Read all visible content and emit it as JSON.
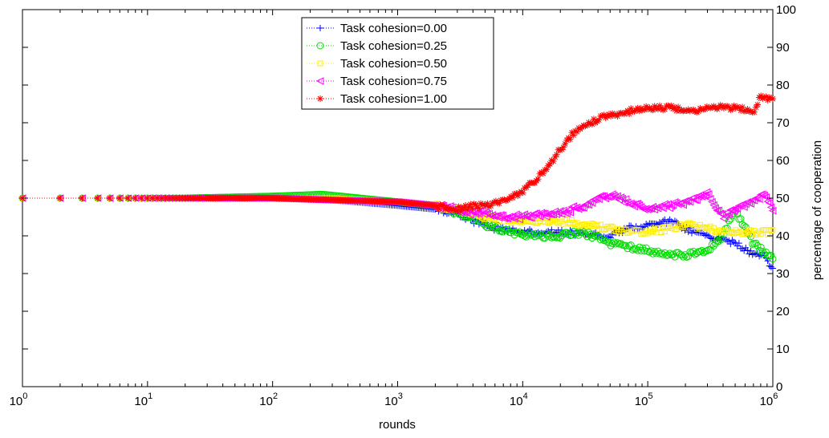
{
  "chart_data": {
    "type": "scatter",
    "xscale": "log",
    "xlim": [
      1,
      1000000
    ],
    "ylim": [
      0,
      100
    ],
    "xlabel": "rounds",
    "ylabel": "percentage of cooperation",
    "y_axis_side": "right",
    "grid": false,
    "legend_position": "top-center",
    "xticks": [
      {
        "value": 1,
        "base": "10",
        "exp": "0"
      },
      {
        "value": 10,
        "base": "10",
        "exp": "1"
      },
      {
        "value": 100,
        "base": "10",
        "exp": "2"
      },
      {
        "value": 1000,
        "base": "10",
        "exp": "3"
      },
      {
        "value": 10000,
        "base": "10",
        "exp": "4"
      },
      {
        "value": 100000,
        "base": "10",
        "exp": "5"
      },
      {
        "value": 1000000,
        "base": "10",
        "exp": "6"
      }
    ],
    "yticks": [
      0,
      10,
      20,
      30,
      40,
      50,
      60,
      70,
      80,
      90,
      100
    ],
    "series": [
      {
        "name": "Task cohesion=0.00",
        "color": "#0000ff",
        "marker": "plus",
        "points": [
          [
            1,
            50
          ],
          [
            2,
            50
          ],
          [
            5,
            50
          ],
          [
            20,
            50
          ],
          [
            100,
            50
          ],
          [
            300,
            49.5
          ],
          [
            1000,
            48
          ],
          [
            2000,
            47
          ],
          [
            3000,
            46
          ],
          [
            4000,
            44
          ],
          [
            6000,
            42
          ],
          [
            10000,
            41
          ],
          [
            20000,
            41
          ],
          [
            30000,
            40.5
          ],
          [
            50000,
            40
          ],
          [
            70000,
            42
          ],
          [
            100000,
            43
          ],
          [
            150000,
            44
          ],
          [
            200000,
            42
          ],
          [
            300000,
            40
          ],
          [
            500000,
            38
          ],
          [
            700000,
            35
          ],
          [
            850000,
            35
          ],
          [
            1000000,
            31
          ]
        ]
      },
      {
        "name": "Task cohesion=0.25",
        "color": "#00dd00",
        "marker": "circle",
        "points": [
          [
            1,
            50
          ],
          [
            2,
            50
          ],
          [
            5,
            50
          ],
          [
            20,
            50
          ],
          [
            100,
            50.5
          ],
          [
            250,
            51
          ],
          [
            500,
            50
          ],
          [
            1000,
            49
          ],
          [
            2000,
            48
          ],
          [
            3000,
            46
          ],
          [
            5000,
            43
          ],
          [
            8000,
            41
          ],
          [
            12000,
            40
          ],
          [
            20000,
            40
          ],
          [
            30000,
            41
          ],
          [
            50000,
            38
          ],
          [
            70000,
            37
          ],
          [
            100000,
            36
          ],
          [
            150000,
            35
          ],
          [
            200000,
            35
          ],
          [
            300000,
            36
          ],
          [
            400000,
            40
          ],
          [
            500000,
            47
          ],
          [
            700000,
            38
          ],
          [
            1000000,
            34
          ]
        ]
      },
      {
        "name": "Task cohesion=0.50",
        "color": "#ffee00",
        "marker": "square",
        "points": [
          [
            1,
            50
          ],
          [
            2,
            50
          ],
          [
            5,
            50
          ],
          [
            20,
            50
          ],
          [
            100,
            50
          ],
          [
            300,
            50
          ],
          [
            1000,
            49
          ],
          [
            2000,
            48
          ],
          [
            3000,
            47
          ],
          [
            5000,
            45
          ],
          [
            8000,
            44
          ],
          [
            10000,
            44
          ],
          [
            20000,
            44
          ],
          [
            30000,
            43
          ],
          [
            50000,
            42
          ],
          [
            70000,
            41
          ],
          [
            100000,
            41
          ],
          [
            150000,
            42
          ],
          [
            200000,
            43
          ],
          [
            300000,
            42
          ],
          [
            500000,
            41
          ],
          [
            700000,
            41
          ],
          [
            1000000,
            41
          ]
        ]
      },
      {
        "name": "Task cohesion=0.75",
        "color": "#ff00ff",
        "marker": "triangle-left",
        "points": [
          [
            1,
            50
          ],
          [
            2,
            50
          ],
          [
            5,
            50
          ],
          [
            20,
            50
          ],
          [
            100,
            50
          ],
          [
            300,
            49.5
          ],
          [
            1000,
            49
          ],
          [
            2000,
            48
          ],
          [
            3000,
            47
          ],
          [
            4000,
            46
          ],
          [
            5000,
            46
          ],
          [
            8000,
            45
          ],
          [
            10000,
            45
          ],
          [
            20000,
            46
          ],
          [
            30000,
            48
          ],
          [
            50000,
            51
          ],
          [
            70000,
            49
          ],
          [
            100000,
            47
          ],
          [
            150000,
            48
          ],
          [
            200000,
            49
          ],
          [
            300000,
            51
          ],
          [
            400000,
            45
          ],
          [
            500000,
            47
          ],
          [
            700000,
            49
          ],
          [
            850000,
            51
          ],
          [
            1000000,
            47
          ]
        ]
      },
      {
        "name": "Task cohesion=1.00",
        "color": "#ff0000",
        "marker": "star",
        "points": [
          [
            1,
            50
          ],
          [
            2,
            50
          ],
          [
            3,
            50
          ],
          [
            5,
            50
          ],
          [
            10,
            50
          ],
          [
            20,
            50
          ],
          [
            50,
            50
          ],
          [
            100,
            50
          ],
          [
            300,
            49.5
          ],
          [
            1000,
            49
          ],
          [
            2000,
            48
          ],
          [
            3000,
            47
          ],
          [
            4000,
            48
          ],
          [
            5000,
            48
          ],
          [
            7000,
            49
          ],
          [
            10000,
            52
          ],
          [
            13000,
            55
          ],
          [
            16000,
            58
          ],
          [
            20000,
            63
          ],
          [
            25000,
            67
          ],
          [
            30000,
            69
          ],
          [
            40000,
            71
          ],
          [
            50000,
            72
          ],
          [
            70000,
            73
          ],
          [
            100000,
            74
          ],
          [
            150000,
            74
          ],
          [
            200000,
            73
          ],
          [
            300000,
            74
          ],
          [
            500000,
            74
          ],
          [
            700000,
            73
          ],
          [
            800000,
            77
          ],
          [
            1000000,
            76
          ]
        ]
      }
    ]
  }
}
